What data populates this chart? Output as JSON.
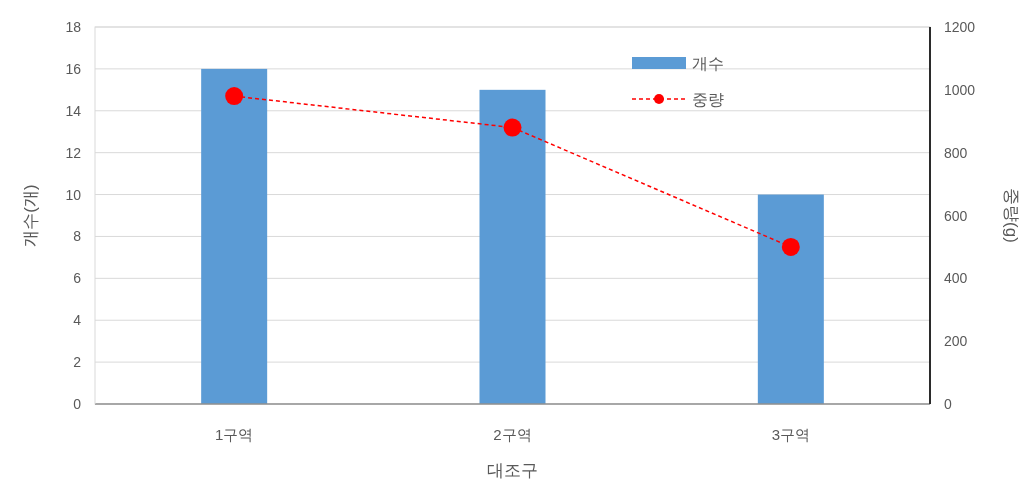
{
  "chart_data": {
    "type": "bar",
    "xlabel": "대조구",
    "ylabel": "개수(개)",
    "y2label": "중량(g)",
    "categories": [
      "1구역",
      "2구역",
      "3구역"
    ],
    "series": [
      {
        "name": "개수",
        "color": "#5b9bd5",
        "values": [
          16,
          15,
          10
        ]
      },
      {
        "name": "중량",
        "color": "#ff0000",
        "type": "line",
        "axis": "y2",
        "marker": "circle",
        "line_style": "dashed",
        "values": [
          980,
          880,
          500
        ]
      }
    ],
    "ylim": [
      0,
      18
    ],
    "yticks": [
      0,
      2,
      4,
      6,
      8,
      10,
      12,
      14,
      16,
      18
    ],
    "y2lim": [
      0,
      1200
    ],
    "y2ticks": [
      0,
      200,
      400,
      600,
      800,
      1000,
      1200
    ],
    "grid": "y",
    "legend": "top right"
  }
}
